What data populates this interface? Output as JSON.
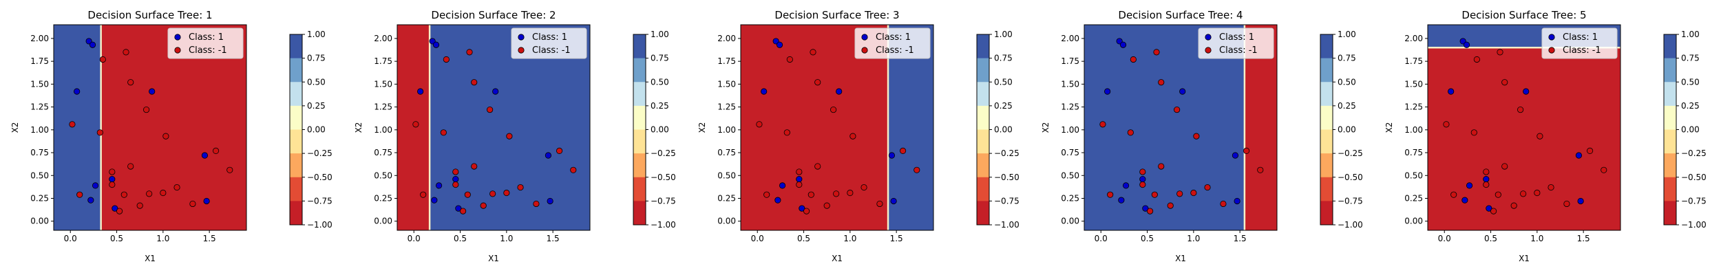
{
  "figure": {
    "legend_labels": [
      "Class: 1",
      "Class: -1"
    ],
    "class_colors": {
      "class_pos": "#0000cc",
      "class_neg": "#cc1111"
    },
    "region_colors": {
      "pos": "#3b57a5",
      "neg": "#c51f27"
    },
    "boundary_color": "#f5f0c8"
  },
  "chart_data": [
    {
      "type": "scatter",
      "title": "Decision Surface Tree: 1",
      "xlabel": "X1",
      "ylabel": "X2",
      "xlim": [
        -0.18,
        1.9
      ],
      "ylim": [
        -0.1,
        2.15
      ],
      "x_ticks": [
        "0.0",
        "0.5",
        "1.0",
        "1.5"
      ],
      "y_ticks": [
        "0.00",
        "0.25",
        "0.50",
        "0.75",
        "1.00",
        "1.25",
        "1.50",
        "1.75",
        "2.00"
      ],
      "decision_boundary": {
        "axis": "x1",
        "threshold": 0.33,
        "left_class": 1,
        "right_class": -1
      },
      "colorbar": {
        "range": [
          -1,
          1
        ],
        "ticks": [
          "1.00",
          "0.75",
          "0.50",
          "0.25",
          "0.00",
          "−0.25",
          "−0.50",
          "−0.75",
          "−1.00"
        ]
      },
      "legend_position": "top-right"
    },
    {
      "type": "scatter",
      "title": "Decision Surface Tree: 2",
      "xlabel": "X1",
      "ylabel": "X2",
      "xlim": [
        -0.18,
        1.9
      ],
      "ylim": [
        -0.1,
        2.15
      ],
      "x_ticks": [
        "0.0",
        "0.5",
        "1.0",
        "1.5"
      ],
      "y_ticks": [
        "0.00",
        "0.25",
        "0.50",
        "0.75",
        "1.00",
        "1.25",
        "1.50",
        "1.75",
        "2.00"
      ],
      "decision_boundary": {
        "axis": "x1",
        "threshold": 0.17,
        "left_class": -1,
        "right_class": 1
      },
      "colorbar": {
        "range": [
          -1,
          1
        ],
        "ticks": [
          "1.00",
          "0.75",
          "0.50",
          "0.25",
          "0.00",
          "−0.25",
          "−0.50",
          "−0.75",
          "−1.00"
        ]
      },
      "legend_position": "top-right"
    },
    {
      "type": "scatter",
      "title": "Decision Surface Tree: 3",
      "xlabel": "X1",
      "ylabel": "X2",
      "xlim": [
        -0.18,
        1.9
      ],
      "ylim": [
        -0.1,
        2.15
      ],
      "x_ticks": [
        "0.0",
        "0.5",
        "1.0",
        "1.5"
      ],
      "y_ticks": [
        "0.00",
        "0.25",
        "0.50",
        "0.75",
        "1.00",
        "1.25",
        "1.50",
        "1.75",
        "2.00"
      ],
      "decision_boundary": {
        "axis": "x1",
        "threshold": 1.41,
        "left_class": -1,
        "right_class": 1
      },
      "colorbar": {
        "range": [
          -1,
          1
        ],
        "ticks": [
          "1.00",
          "0.75",
          "0.50",
          "0.25",
          "0.00",
          "−0.25",
          "−0.50",
          "−0.75",
          "−1.00"
        ]
      },
      "legend_position": "top-right"
    },
    {
      "type": "scatter",
      "title": "Decision Surface Tree: 4",
      "xlabel": "X1",
      "ylabel": "X2",
      "xlim": [
        -0.18,
        1.9
      ],
      "ylim": [
        -0.1,
        2.15
      ],
      "x_ticks": [
        "0.0",
        "0.5",
        "1.0",
        "1.5"
      ],
      "y_ticks": [
        "0.00",
        "0.25",
        "0.50",
        "0.75",
        "1.00",
        "1.25",
        "1.50",
        "1.75",
        "2.00"
      ],
      "decision_boundary": {
        "axis": "x1",
        "threshold": 1.55,
        "left_class": 1,
        "right_class": -1
      },
      "colorbar": {
        "range": [
          -1,
          1
        ],
        "ticks": [
          "1.00",
          "0.75",
          "0.50",
          "0.25",
          "0.00",
          "−0.25",
          "−0.50",
          "−0.75",
          "−1.00"
        ]
      },
      "legend_position": "top-right"
    },
    {
      "type": "scatter",
      "title": "Decision Surface Tree: 5",
      "xlabel": "X1",
      "ylabel": "X2",
      "xlim": [
        -0.18,
        1.9
      ],
      "ylim": [
        -0.1,
        2.15
      ],
      "x_ticks": [
        "0.0",
        "0.5",
        "1.0",
        "1.5"
      ],
      "y_ticks": [
        "0.00",
        "0.25",
        "0.50",
        "0.75",
        "1.00",
        "1.25",
        "1.50",
        "1.75",
        "2.00"
      ],
      "decision_boundary": {
        "axis": "x2",
        "threshold": 1.9,
        "below_class": -1,
        "above_class": 1
      },
      "colorbar": {
        "range": [
          -1,
          1
        ],
        "ticks": [
          "1.00",
          "0.75",
          "0.50",
          "0.25",
          "0.00",
          "−0.25",
          "−0.50",
          "−0.75",
          "−1.00"
        ]
      },
      "legend_position": "top-right"
    }
  ],
  "points": {
    "class_1": [
      [
        0.2,
        1.97
      ],
      [
        0.24,
        1.93
      ],
      [
        0.07,
        1.42
      ],
      [
        0.88,
        1.42
      ],
      [
        0.27,
        0.39
      ],
      [
        0.45,
        0.46
      ],
      [
        0.22,
        0.23
      ],
      [
        1.45,
        0.72
      ],
      [
        1.47,
        0.22
      ],
      [
        0.48,
        0.14
      ]
    ],
    "class_neg1": [
      [
        0.35,
        1.77
      ],
      [
        0.6,
        1.85
      ],
      [
        0.65,
        1.52
      ],
      [
        0.82,
        1.22
      ],
      [
        0.02,
        1.06
      ],
      [
        0.32,
        0.97
      ],
      [
        1.03,
        0.93
      ],
      [
        0.45,
        0.54
      ],
      [
        0.65,
        0.6
      ],
      [
        0.45,
        0.4
      ],
      [
        0.1,
        0.29
      ],
      [
        0.58,
        0.29
      ],
      [
        0.75,
        0.17
      ],
      [
        0.85,
        0.3
      ],
      [
        1.0,
        0.31
      ],
      [
        1.15,
        0.37
      ],
      [
        1.32,
        0.19
      ],
      [
        1.57,
        0.77
      ],
      [
        1.72,
        0.56
      ],
      [
        0.53,
        0.11
      ]
    ]
  }
}
